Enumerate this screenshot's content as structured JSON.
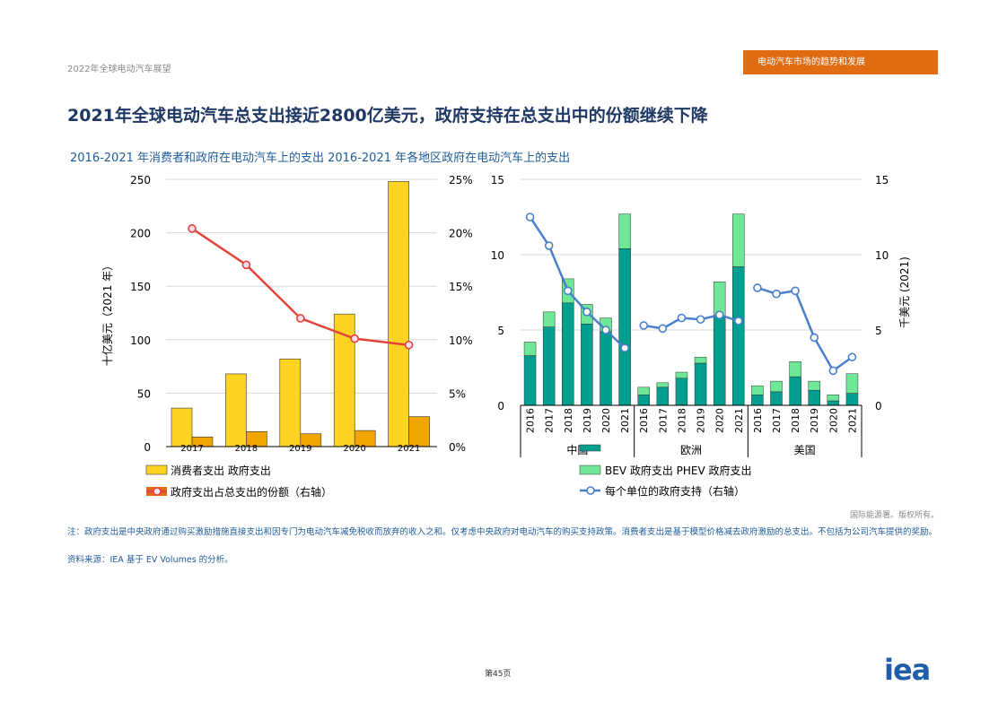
{
  "header": {
    "report": "2022年全球电动汽车展望",
    "section": "电动汽车市场的趋势和发展"
  },
  "title": "2021年全球电动汽车总支出接近2800亿美元，政府支持在总支出中的份额继续下降",
  "subtitle": "2016-2021 年消费者和政府在电动汽车上的支出 2016-2021 年各地区政府在电动汽车上的支出",
  "colors": {
    "consumer": "#FFD324",
    "government": "#F0A500",
    "share": "#E0443A",
    "bev": "#009E8E",
    "phev": "#6EE896",
    "per_unit": "#4A7FCC"
  },
  "chart_data": [
    {
      "type": "bar",
      "ylabel": "十亿美元（2021 年）",
      "categories": [
        "2017",
        "2018",
        "2019",
        "2020",
        "2021"
      ],
      "ylim": [
        0,
        250
      ],
      "y_ticks": [
        "250",
        "200",
        "150",
        "100",
        "50",
        "0"
      ],
      "y2lim": [
        0,
        0.25
      ],
      "y2_ticks": [
        "25%",
        "20%",
        "15%",
        "10%",
        "5%",
        "0%"
      ],
      "series": [
        {
          "name": "消费者支出",
          "type": "bar",
          "values": [
            36,
            68,
            82,
            124,
            248
          ]
        },
        {
          "name": "政府支出",
          "type": "bar",
          "values": [
            9,
            14,
            12,
            15,
            28
          ]
        },
        {
          "name": "政府支出占总支出的份额（右轴）",
          "type": "line",
          "axis": "right",
          "values": [
            0.204,
            0.17,
            0.12,
            0.101,
            0.095
          ]
        }
      ],
      "legend": [
        "消费者支出 政府支出",
        "政府支出占总支出的份额（右轴）"
      ],
      "legend_position": "bottom",
      "grid": true
    },
    {
      "type": "bar",
      "y2label": "千美元 (2021)",
      "groups": [
        {
          "name": "中国",
          "years": [
            "2016",
            "2017",
            "2018",
            "2019",
            "2020",
            "2021"
          ]
        },
        {
          "name": "欧洲",
          "years": [
            "2016",
            "2017",
            "2018",
            "2019",
            "2020",
            "2021"
          ]
        },
        {
          "name": "美国",
          "years": [
            "2016",
            "2017",
            "2018",
            "2019",
            "2020",
            "2021"
          ]
        }
      ],
      "x_tick_labels": [
        "2016",
        "2017",
        "2018",
        "2019",
        "2020",
        "2021",
        "2016",
        "2017",
        "2018",
        "2019",
        "2020",
        "2021",
        "2016",
        "2017",
        "2018",
        "2019",
        "2020",
        "2021"
      ],
      "ylim": [
        0,
        15
      ],
      "y_ticks": [
        "15",
        "10",
        "5",
        "0"
      ],
      "y2lim": [
        0,
        15
      ],
      "y2_ticks": [
        "15",
        "10",
        "5",
        "0"
      ],
      "series": [
        {
          "name": "BEV 政府支出",
          "type": "stacked-bar",
          "values": [
            3.3,
            5.2,
            6.8,
            5.4,
            4.9,
            10.4,
            0.7,
            1.2,
            1.8,
            2.8,
            5.9,
            9.2,
            0.7,
            0.9,
            1.9,
            1.0,
            0.3,
            0.8
          ]
        },
        {
          "name": "PHEV 政府支出",
          "type": "stacked-bar",
          "values": [
            0.9,
            1.0,
            1.6,
            1.3,
            0.9,
            2.3,
            0.5,
            0.3,
            0.4,
            0.4,
            2.3,
            3.5,
            0.6,
            0.7,
            1.0,
            0.6,
            0.4,
            1.3
          ]
        },
        {
          "name": "每个单位的政府支持（右轴）",
          "type": "line",
          "axis": "right",
          "values": [
            12.5,
            10.6,
            7.6,
            6.2,
            5.0,
            3.8,
            5.3,
            5.1,
            5.8,
            5.7,
            6.0,
            5.6,
            7.8,
            7.4,
            7.6,
            4.5,
            2.3,
            3.2
          ]
        }
      ],
      "legend": [
        "BEV 政府支出 PHEV 政府支出",
        "每个单位的政府支持（右轴）"
      ],
      "legend_position": "bottom",
      "grid": true
    }
  ],
  "copyright": "国际能源署。版权所有。",
  "note": "注：政府支出是中央政府通过购买激励措施直接支出和因专门为电动汽车减免税收而放弃的收入之和。仅考虑中央政府对电动汽车的购买支持政策。消费者支出是基于模型价格减去政府激励的总支出。不包括为公司汽车提供的奖励。",
  "source": "资料来源：IEA 基于 EV Volumes 的分析。",
  "page": "第45页",
  "logo": "iea"
}
